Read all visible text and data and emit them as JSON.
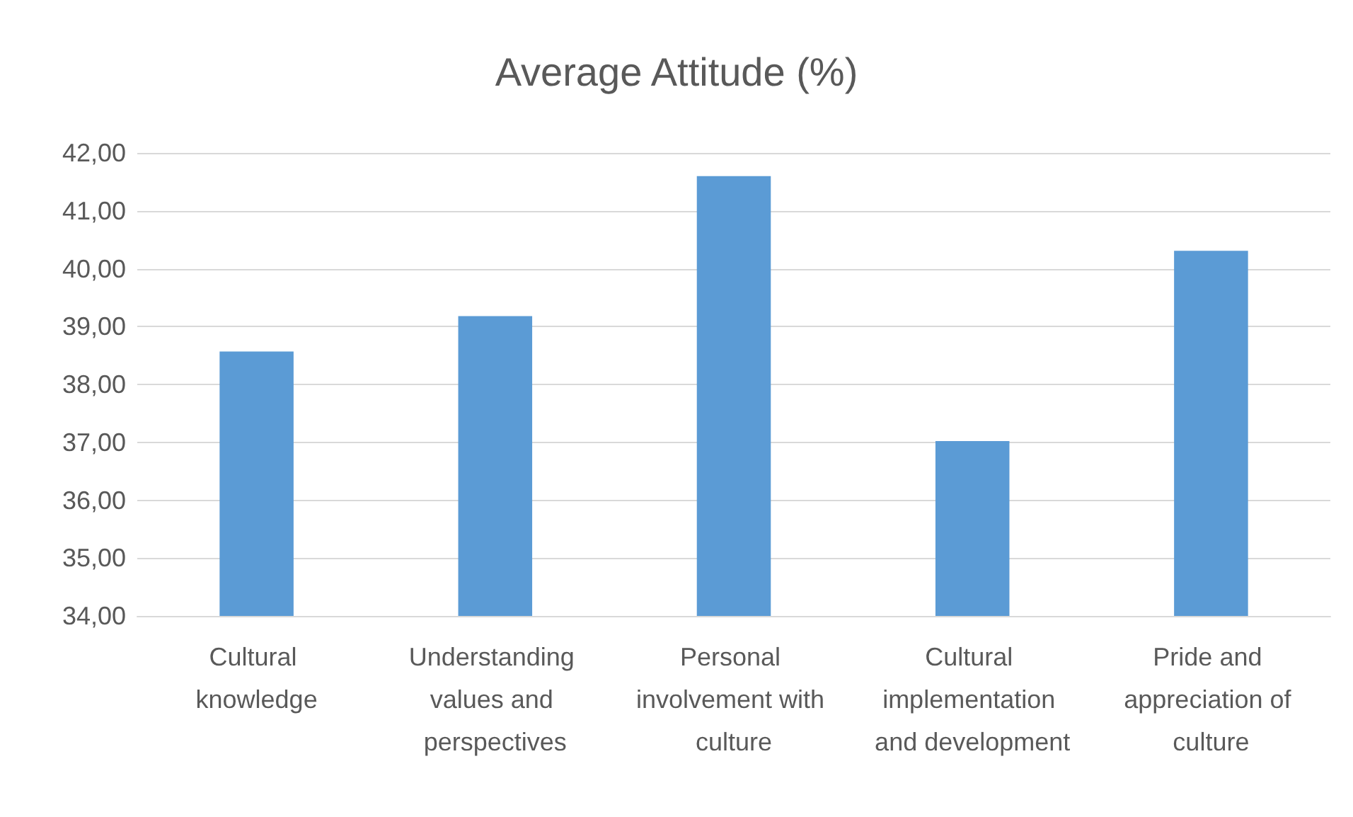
{
  "chart_data": {
    "type": "bar",
    "title": "Average Attitude (%)",
    "categories": [
      "Cultural knowledge",
      "Understanding values and perspectives",
      "Personal involvement with culture",
      "Cultural implementation and development",
      "Pride and appreciation of culture"
    ],
    "values": [
      38.57,
      39.18,
      41.6,
      37.02,
      40.31
    ],
    "color": "#5b9bd5",
    "ylim": [
      34,
      42
    ],
    "yticks": [
      {
        "value": 34,
        "label": "34,00"
      },
      {
        "value": 35,
        "label": "35,00"
      },
      {
        "value": 36,
        "label": "36,00"
      },
      {
        "value": 37,
        "label": "37,00"
      },
      {
        "value": 38,
        "label": "38,00"
      },
      {
        "value": 39,
        "label": "39,00"
      },
      {
        "value": 40,
        "label": "40,00"
      },
      {
        "value": 41,
        "label": "41,00"
      },
      {
        "value": 42,
        "label": "42,00"
      }
    ],
    "grid": "y"
  }
}
